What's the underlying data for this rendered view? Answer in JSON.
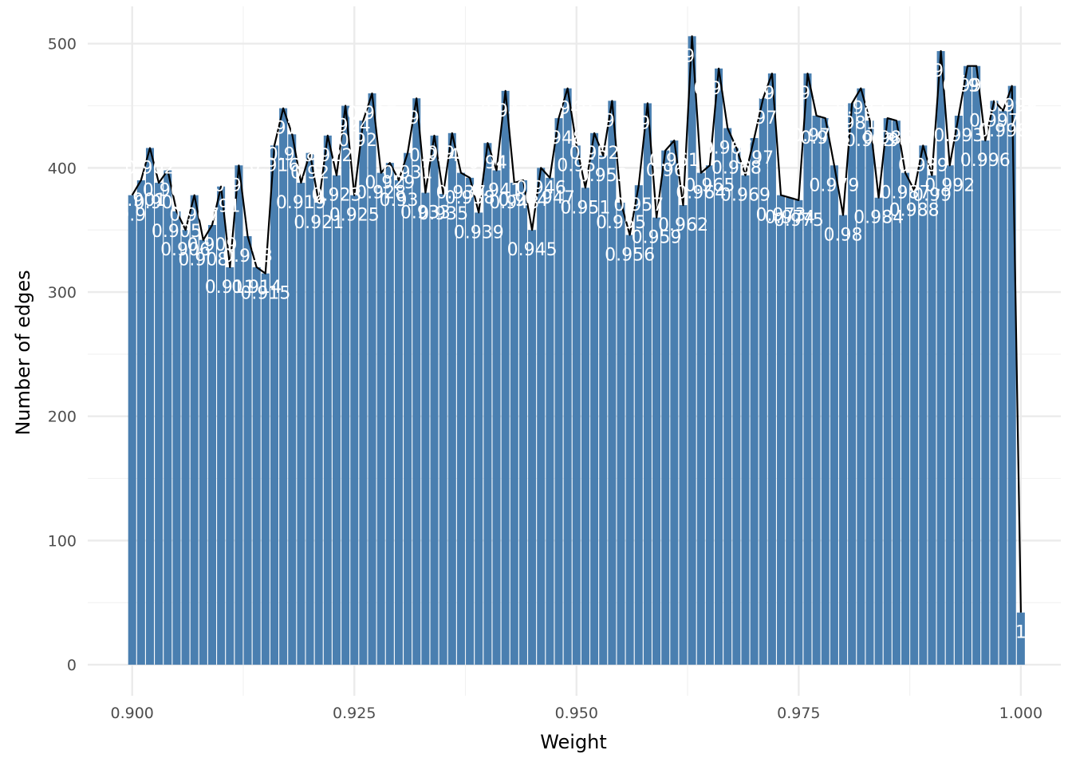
{
  "chart_data": {
    "type": "bar",
    "title": "",
    "xlabel": "Weight",
    "ylabel": "Number of edges",
    "xlim": [
      0.895,
      1.0045
    ],
    "ylim": [
      -25,
      530
    ],
    "x_ticks": [
      0.9,
      0.925,
      0.95,
      0.975,
      1.0
    ],
    "x_tick_labels": [
      "0.900",
      "0.925",
      "0.950",
      "0.975",
      "1.000"
    ],
    "y_ticks": [
      0,
      100,
      200,
      300,
      400,
      500
    ],
    "y_tick_labels": [
      "0",
      "100",
      "200",
      "300",
      "400",
      "500"
    ],
    "grid": true,
    "bar_color": "#4a7fb0",
    "line_color": "#000000",
    "label_color": "#ffffff",
    "x": [
      0.9,
      0.901,
      0.902,
      0.903,
      0.904,
      0.905,
      0.906,
      0.907,
      0.908,
      0.909,
      0.91,
      0.911,
      0.912,
      0.913,
      0.914,
      0.915,
      0.916,
      0.917,
      0.918,
      0.919,
      0.92,
      0.921,
      0.922,
      0.923,
      0.924,
      0.925,
      0.926,
      0.927,
      0.928,
      0.929,
      0.93,
      0.931,
      0.932,
      0.933,
      0.934,
      0.935,
      0.936,
      0.937,
      0.938,
      0.939,
      0.94,
      0.941,
      0.942,
      0.943,
      0.944,
      0.945,
      0.946,
      0.947,
      0.948,
      0.949,
      0.95,
      0.951,
      0.952,
      0.953,
      0.954,
      0.955,
      0.956,
      0.957,
      0.958,
      0.959,
      0.96,
      0.961,
      0.962,
      0.963,
      0.964,
      0.965,
      0.966,
      0.967,
      0.968,
      0.969,
      0.97,
      0.971,
      0.972,
      0.973,
      0.974,
      0.975,
      0.976,
      0.977,
      0.978,
      0.979,
      0.98,
      0.981,
      0.982,
      0.983,
      0.984,
      0.985,
      0.986,
      0.987,
      0.988,
      0.989,
      0.99,
      0.991,
      0.992,
      0.993,
      0.994,
      0.995,
      0.996,
      0.997,
      0.998,
      0.999,
      1.0
    ],
    "values": [
      378,
      390,
      416,
      388,
      398,
      365,
      350,
      378,
      342,
      354,
      385,
      320,
      402,
      345,
      320,
      315,
      418,
      448,
      427,
      388,
      412,
      372,
      426,
      394,
      450,
      378,
      438,
      460,
      396,
      404,
      390,
      412,
      456,
      380,
      426,
      379,
      428,
      396,
      392,
      364,
      420,
      398,
      462,
      388,
      390,
      350,
      400,
      392,
      440,
      464,
      418,
      384,
      428,
      410,
      454,
      372,
      346,
      386,
      452,
      360,
      414,
      422,
      370,
      506,
      396,
      402,
      480,
      432,
      416,
      394,
      424,
      456,
      476,
      378,
      376,
      374,
      476,
      442,
      440,
      402,
      362,
      452,
      464,
      438,
      376,
      440,
      438,
      396,
      382,
      418,
      394,
      494,
      402,
      442,
      482,
      482,
      422,
      454,
      446,
      466,
      42
    ],
    "labels": [
      "0.9",
      "0.901",
      "0.902",
      "0.903",
      "0.904",
      "0.905",
      "0.906",
      "0.907",
      "0.908",
      "0.909",
      "0.91",
      "0.911",
      "0.912",
      "0.913",
      "0.914",
      "0.915",
      "0.916",
      "0.917",
      "0.918",
      "0.919",
      "0.92",
      "0.921",
      "0.922",
      "0.923",
      "0.924",
      "0.925",
      "0.926",
      "0.927",
      "0.928",
      "0.929",
      "0.93",
      "0.931",
      "0.932",
      "0.933",
      "0.934",
      "0.935",
      "0.936",
      "0.937",
      "0.938",
      "0.939",
      "0.94",
      "0.941",
      "0.942",
      "0.943",
      "0.944",
      "0.945",
      "0.946",
      "0.947",
      "0.948",
      "0.949",
      "0.95",
      "0.951",
      "0.952",
      "0.953",
      "0.954",
      "0.955",
      "0.956",
      "0.957",
      "0.958",
      "0.959",
      "0.96",
      "0.961",
      "0.962",
      "0.963",
      "0.964",
      "0.965",
      "0.966",
      "0.967",
      "0.968",
      "0.969",
      "0.97",
      "0.971",
      "0.972",
      "0.973",
      "0.974",
      "0.975",
      "0.976",
      "0.977",
      "0.978",
      "0.979",
      "0.98",
      "0.981",
      "0.982",
      "0.983",
      "0.984",
      "0.985",
      "0.986",
      "0.987",
      "0.988",
      "0.989",
      "0.99",
      "0.991",
      "0.992",
      "0.993",
      "0.994",
      "0.995",
      "0.996",
      "0.997",
      "0.998",
      "0.999",
      "1"
    ]
  }
}
